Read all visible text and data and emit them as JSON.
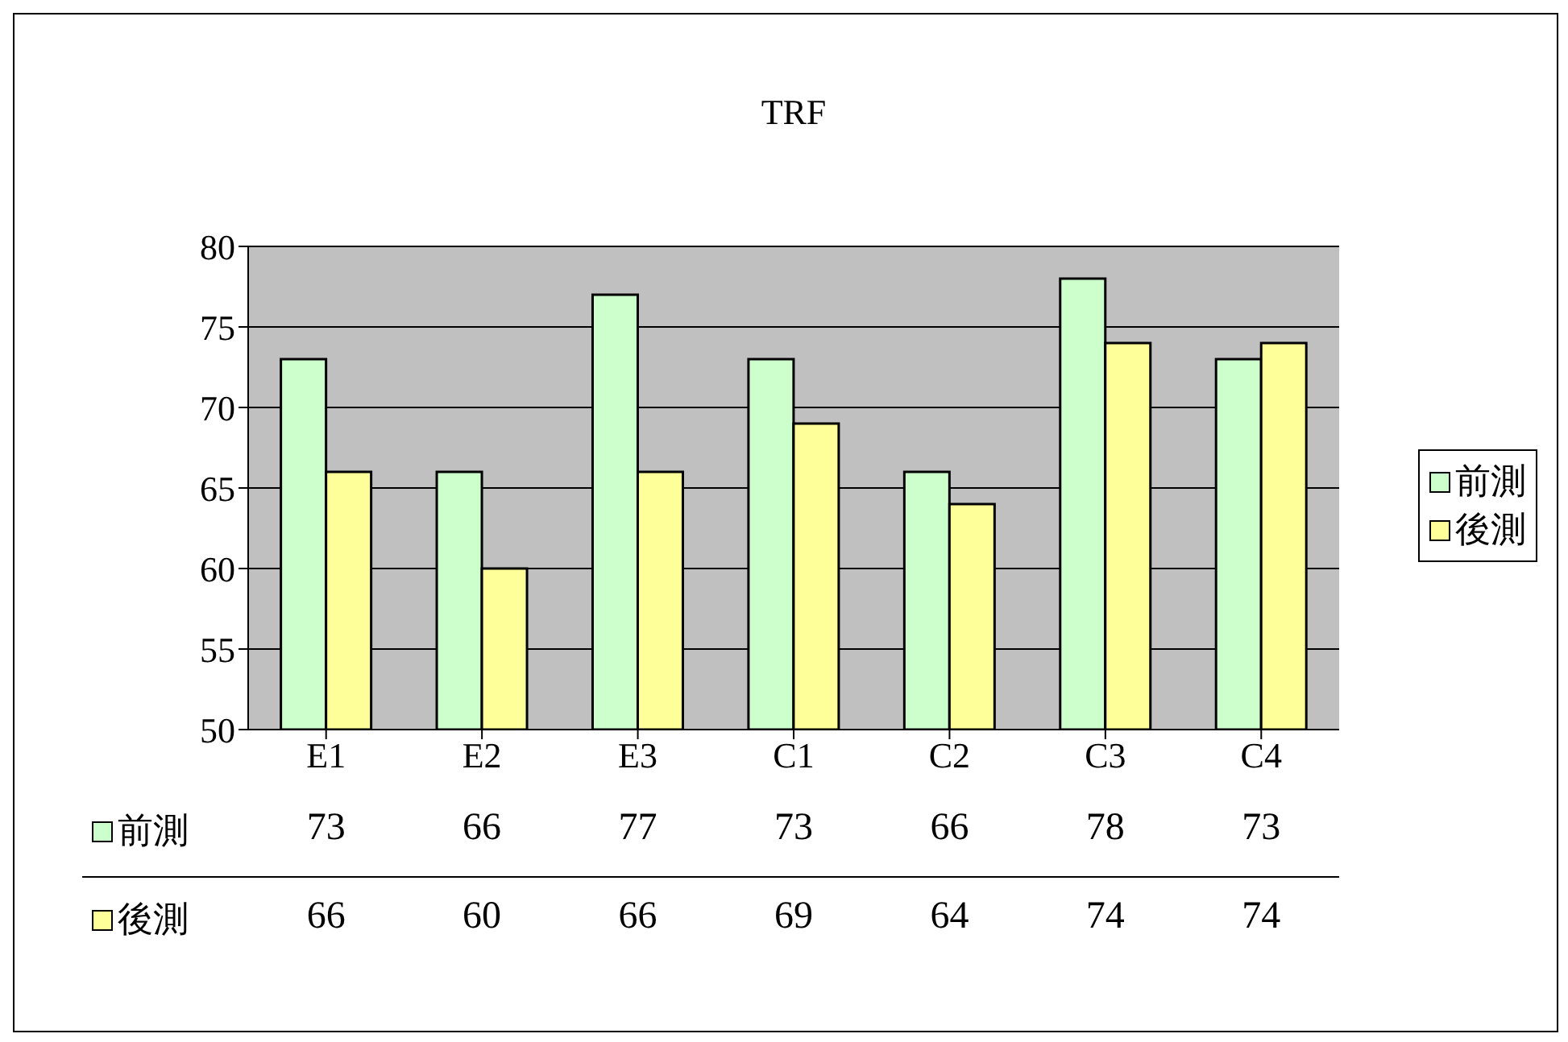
{
  "chart_data": {
    "type": "bar",
    "title": "TRF",
    "categories": [
      "E1",
      "E2",
      "E3",
      "C1",
      "C2",
      "C3",
      "C4"
    ],
    "series": [
      {
        "name": "前測",
        "color": "#ccffcc",
        "values": [
          73,
          66,
          77,
          73,
          66,
          78,
          73
        ]
      },
      {
        "name": "後測",
        "color": "#ffff99",
        "values": [
          66,
          60,
          66,
          69,
          64,
          74,
          74
        ]
      }
    ],
    "ylim": [
      50,
      80
    ],
    "yticks": [
      50,
      55,
      60,
      65,
      70,
      75,
      80
    ],
    "grid": "y",
    "legend": "right",
    "data_labels": true
  }
}
